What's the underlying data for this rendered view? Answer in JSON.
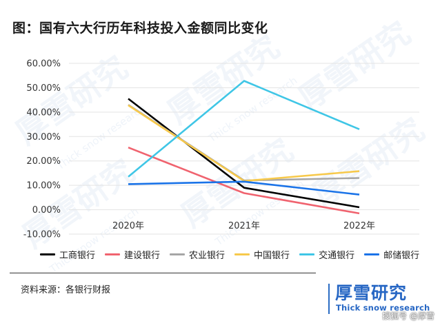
{
  "title": "图：国有六大行历年科技投入金额同比变化",
  "source": "资料来源：各银行财报",
  "brand": {
    "name": "厚雪研究",
    "en": "Thick snow research"
  },
  "watermark": {
    "text": "厚雪研究",
    "sub": "Thick snow research"
  },
  "credit": "搜狐号 @厚雪",
  "chart_data": {
    "type": "line",
    "title": "图：国有六大行历年科技投入金额同比变化",
    "categories": [
      "2020年",
      "2021年",
      "2022年"
    ],
    "y_ticks": [
      "60.00%",
      "50.00%",
      "40.00%",
      "30.00%",
      "20.00%",
      "10.00%",
      "0.00%",
      "-10.00%"
    ],
    "ylim": [
      -10,
      60
    ],
    "grid": true,
    "legend_position": "bottom",
    "series": [
      {
        "name": "工商银行",
        "color": "#000000",
        "values": [
          45.5,
          9.0,
          1.0
        ]
      },
      {
        "name": "建设银行",
        "color": "#f0636f",
        "values": [
          25.5,
          6.8,
          -1.5
        ]
      },
      {
        "name": "农业银行",
        "color": "#a6a6a6",
        "values": [
          43.0,
          12.0,
          13.0
        ]
      },
      {
        "name": "中国银行",
        "color": "#f7c94b",
        "values": [
          42.8,
          11.8,
          15.8
        ]
      },
      {
        "name": "交通银行",
        "color": "#3fc6e6",
        "values": [
          13.5,
          52.8,
          33.0
        ]
      },
      {
        "name": "邮储银行",
        "color": "#1a73e8",
        "values": [
          10.5,
          11.5,
          6.2
        ]
      }
    ]
  }
}
